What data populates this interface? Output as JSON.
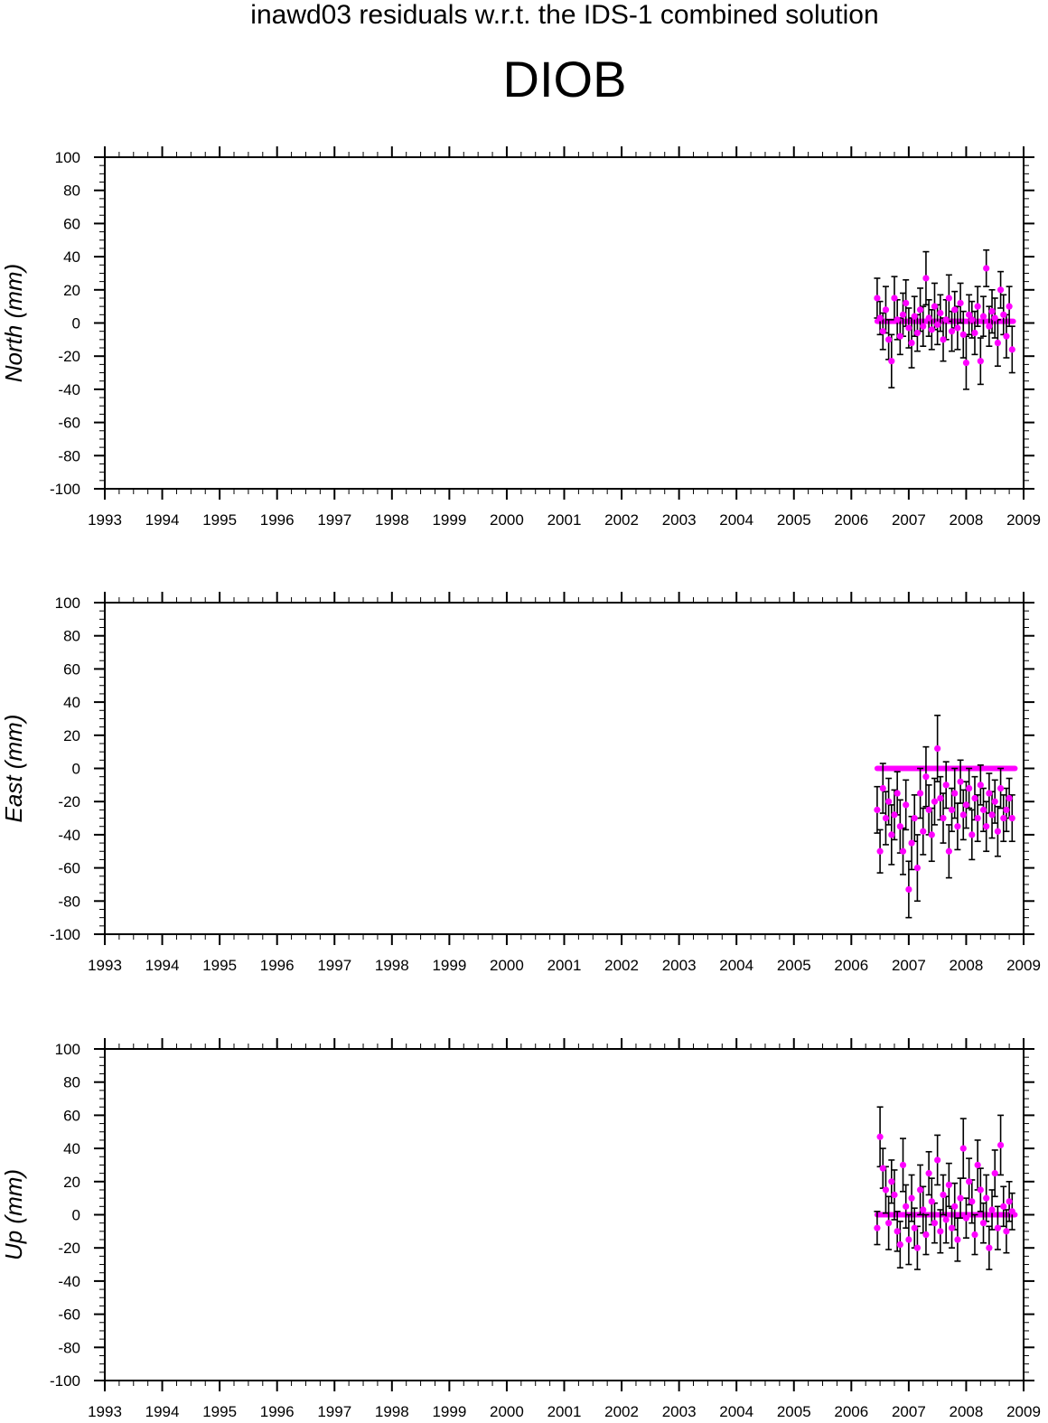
{
  "header": {
    "suptitle": "inawd03 residuals w.r.t. the IDS-1 combined solution",
    "station": "DIOB"
  },
  "colors": {
    "points": "#ff00ff",
    "error_bars": "#000000",
    "axes": "#000000"
  },
  "chart_data": [
    {
      "type": "scatter",
      "title": "",
      "ylabel": "North (mm)",
      "xlabel": "",
      "xlim": [
        1993,
        2009
      ],
      "ylim": [
        -100,
        100
      ],
      "x_ticks": [
        "1993",
        "1994",
        "1995",
        "1996",
        "1997",
        "1998",
        "1999",
        "2000",
        "2001",
        "2002",
        "2003",
        "2004",
        "2005",
        "2006",
        "2007",
        "2008",
        "2009"
      ],
      "y_ticks": [
        "-100",
        "-80",
        "-60",
        "-40",
        "-20",
        "0",
        "20",
        "40",
        "60",
        "80",
        "100"
      ],
      "model_line": {
        "x": [
          2006.45,
          2008.82
        ],
        "y": [
          1,
          1
        ]
      },
      "series": [
        {
          "x": [
            2006.45,
            2006.5,
            2006.55,
            2006.6,
            2006.65,
            2006.7,
            2006.75,
            2006.8,
            2006.85,
            2006.9,
            2006.95,
            2007.0,
            2007.05,
            2007.1,
            2007.15,
            2007.2,
            2007.25,
            2007.3,
            2007.35,
            2007.4,
            2007.45,
            2007.5,
            2007.55,
            2007.6,
            2007.65,
            2007.7,
            2007.75,
            2007.8,
            2007.85,
            2007.9,
            2007.95,
            2008.0,
            2008.05,
            2008.1,
            2008.15,
            2008.2,
            2008.25,
            2008.3,
            2008.35,
            2008.4,
            2008.45,
            2008.5,
            2008.55,
            2008.6,
            2008.65,
            2008.7,
            2008.75,
            2008.8
          ],
          "y": [
            15,
            3,
            -5,
            8,
            -10,
            -23,
            15,
            2,
            -8,
            5,
            12,
            -3,
            -12,
            4,
            -6,
            8,
            -2,
            27,
            3,
            -4,
            10,
            -1,
            6,
            -10,
            2,
            15,
            -5,
            8,
            -3,
            12,
            -7,
            -24,
            5,
            2,
            -6,
            10,
            -23,
            4,
            33,
            -2,
            7,
            3,
            -12,
            20,
            5,
            -8,
            10,
            -16
          ],
          "err": [
            12,
            10,
            11,
            14,
            12,
            16,
            13,
            12,
            11,
            13,
            14,
            12,
            15,
            12,
            11,
            13,
            12,
            16,
            11,
            12,
            14,
            12,
            11,
            13,
            12,
            14,
            12,
            11,
            13,
            12,
            14,
            16,
            12,
            11,
            13,
            12,
            14,
            12,
            11,
            12,
            13,
            12,
            14,
            11,
            12,
            13,
            12,
            14
          ]
        }
      ]
    },
    {
      "type": "scatter",
      "title": "",
      "ylabel": "East (mm)",
      "xlabel": "",
      "xlim": [
        1993,
        2009
      ],
      "ylim": [
        -100,
        100
      ],
      "x_ticks": [
        "1993",
        "1994",
        "1995",
        "1996",
        "1997",
        "1998",
        "1999",
        "2000",
        "2001",
        "2002",
        "2003",
        "2004",
        "2005",
        "2006",
        "2007",
        "2008",
        "2009"
      ],
      "y_ticks": [
        "-100",
        "-80",
        "-60",
        "-40",
        "-20",
        "0",
        "20",
        "40",
        "60",
        "80",
        "100"
      ],
      "model_line": {
        "x": [
          2006.45,
          2008.85
        ],
        "y": [
          0,
          0
        ]
      },
      "series": [
        {
          "x": [
            2006.45,
            2006.5,
            2006.55,
            2006.6,
            2006.65,
            2006.7,
            2006.75,
            2006.8,
            2006.85,
            2006.9,
            2006.95,
            2007.0,
            2007.05,
            2007.1,
            2007.15,
            2007.2,
            2007.25,
            2007.3,
            2007.35,
            2007.4,
            2007.45,
            2007.5,
            2007.55,
            2007.6,
            2007.65,
            2007.7,
            2007.75,
            2007.8,
            2007.85,
            2007.9,
            2007.95,
            2008.0,
            2008.05,
            2008.1,
            2008.15,
            2008.2,
            2008.25,
            2008.3,
            2008.35,
            2008.4,
            2008.45,
            2008.5,
            2008.55,
            2008.6,
            2008.65,
            2008.7,
            2008.75,
            2008.8
          ],
          "y": [
            -25,
            -50,
            -12,
            -30,
            -20,
            -40,
            -28,
            -15,
            -35,
            -50,
            -22,
            -73,
            -45,
            -30,
            -60,
            -15,
            -38,
            -5,
            -25,
            -40,
            -20,
            12,
            -18,
            -30,
            -10,
            -50,
            -25,
            -15,
            -35,
            -8,
            -28,
            -22,
            -12,
            -40,
            -18,
            -30,
            -10,
            -25,
            -35,
            -15,
            -28,
            -20,
            -38,
            -12,
            -30,
            -25,
            -18,
            -30
          ],
          "err": [
            14,
            13,
            15,
            16,
            14,
            18,
            15,
            13,
            16,
            14,
            15,
            17,
            16,
            14,
            20,
            15,
            14,
            18,
            15,
            16,
            14,
            20,
            13,
            15,
            14,
            16,
            13,
            15,
            14,
            13,
            15,
            14,
            12,
            15,
            13,
            14,
            12,
            13,
            15,
            12,
            14,
            13,
            15,
            12,
            14,
            13,
            12,
            14
          ]
        }
      ]
    },
    {
      "type": "scatter",
      "title": "",
      "ylabel": "Up (mm)",
      "xlabel": "",
      "xlim": [
        1993,
        2009
      ],
      "ylim": [
        -100,
        100
      ],
      "x_ticks": [
        "1993",
        "1994",
        "1995",
        "1996",
        "1997",
        "1998",
        "1999",
        "2000",
        "2001",
        "2002",
        "2003",
        "2004",
        "2005",
        "2006",
        "2007",
        "2008",
        "2009"
      ],
      "y_ticks": [
        "-100",
        "-80",
        "-60",
        "-40",
        "-20",
        "0",
        "20",
        "40",
        "60",
        "80",
        "100"
      ],
      "model_line": {
        "x": [
          2006.45,
          2008.85
        ],
        "y": [
          0,
          0
        ]
      },
      "series": [
        {
          "x": [
            2006.45,
            2006.5,
            2006.55,
            2006.6,
            2006.65,
            2006.7,
            2006.75,
            2006.8,
            2006.85,
            2006.9,
            2006.95,
            2007.0,
            2007.05,
            2007.1,
            2007.15,
            2007.2,
            2007.25,
            2007.3,
            2007.35,
            2007.4,
            2007.45,
            2007.5,
            2007.55,
            2007.6,
            2007.65,
            2007.7,
            2007.75,
            2007.8,
            2007.85,
            2007.9,
            2007.95,
            2008.0,
            2008.05,
            2008.1,
            2008.15,
            2008.2,
            2008.25,
            2008.3,
            2008.35,
            2008.4,
            2008.45,
            2008.5,
            2008.55,
            2008.6,
            2008.65,
            2008.7,
            2008.75,
            2008.8
          ],
          "y": [
            -8,
            47,
            28,
            15,
            -5,
            20,
            12,
            -10,
            -18,
            30,
            5,
            -15,
            10,
            -8,
            -20,
            15,
            3,
            -12,
            25,
            8,
            -5,
            33,
            -10,
            12,
            -3,
            18,
            -8,
            5,
            -15,
            10,
            40,
            -2,
            20,
            8,
            -12,
            30,
            15,
            -5,
            10,
            -20,
            3,
            25,
            -8,
            42,
            5,
            -10,
            8,
            2
          ],
          "err": [
            10,
            18,
            12,
            14,
            16,
            13,
            15,
            12,
            14,
            16,
            13,
            15,
            14,
            12,
            13,
            15,
            14,
            12,
            13,
            14,
            12,
            15,
            13,
            12,
            14,
            13,
            12,
            14,
            13,
            12,
            18,
            12,
            14,
            13,
            12,
            15,
            13,
            12,
            14,
            13,
            12,
            14,
            13,
            18,
            12,
            13,
            12,
            11
          ]
        }
      ]
    }
  ]
}
